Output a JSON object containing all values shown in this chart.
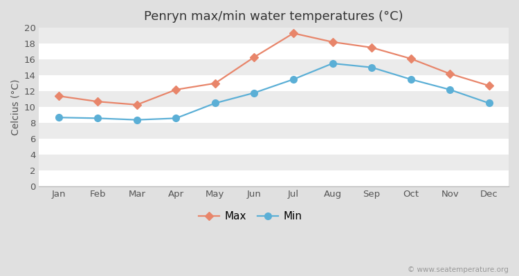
{
  "title": "Penryn max/min water temperatures (°C)",
  "ylabel": "Celcius (°C)",
  "months": [
    "Jan",
    "Feb",
    "Mar",
    "Apr",
    "May",
    "Jun",
    "Jul",
    "Aug",
    "Sep",
    "Oct",
    "Nov",
    "Dec"
  ],
  "max_values": [
    11.4,
    10.7,
    10.3,
    12.2,
    13.0,
    16.3,
    19.3,
    18.2,
    17.5,
    16.1,
    14.2,
    12.7
  ],
  "min_values": [
    8.7,
    8.6,
    8.4,
    8.6,
    10.5,
    11.8,
    13.5,
    15.5,
    15.0,
    13.5,
    12.2,
    10.5
  ],
  "max_color": "#e8856a",
  "min_color": "#5bafd6",
  "outer_bg_color": "#e0e0e0",
  "band_light": "#ebebeb",
  "band_dark": "#ffffff",
  "ylim": [
    0,
    20
  ],
  "yticks": [
    0,
    2,
    4,
    6,
    8,
    10,
    12,
    14,
    16,
    18,
    20
  ],
  "legend_labels": [
    "Max",
    "Min"
  ],
  "watermark": "© www.seatemperature.org",
  "title_fontsize": 13,
  "axis_label_fontsize": 10,
  "tick_fontsize": 9.5,
  "legend_fontsize": 11,
  "max_marker": "D",
  "min_marker": "o",
  "linewidth": 1.6,
  "max_markersize": 6,
  "min_markersize": 7
}
